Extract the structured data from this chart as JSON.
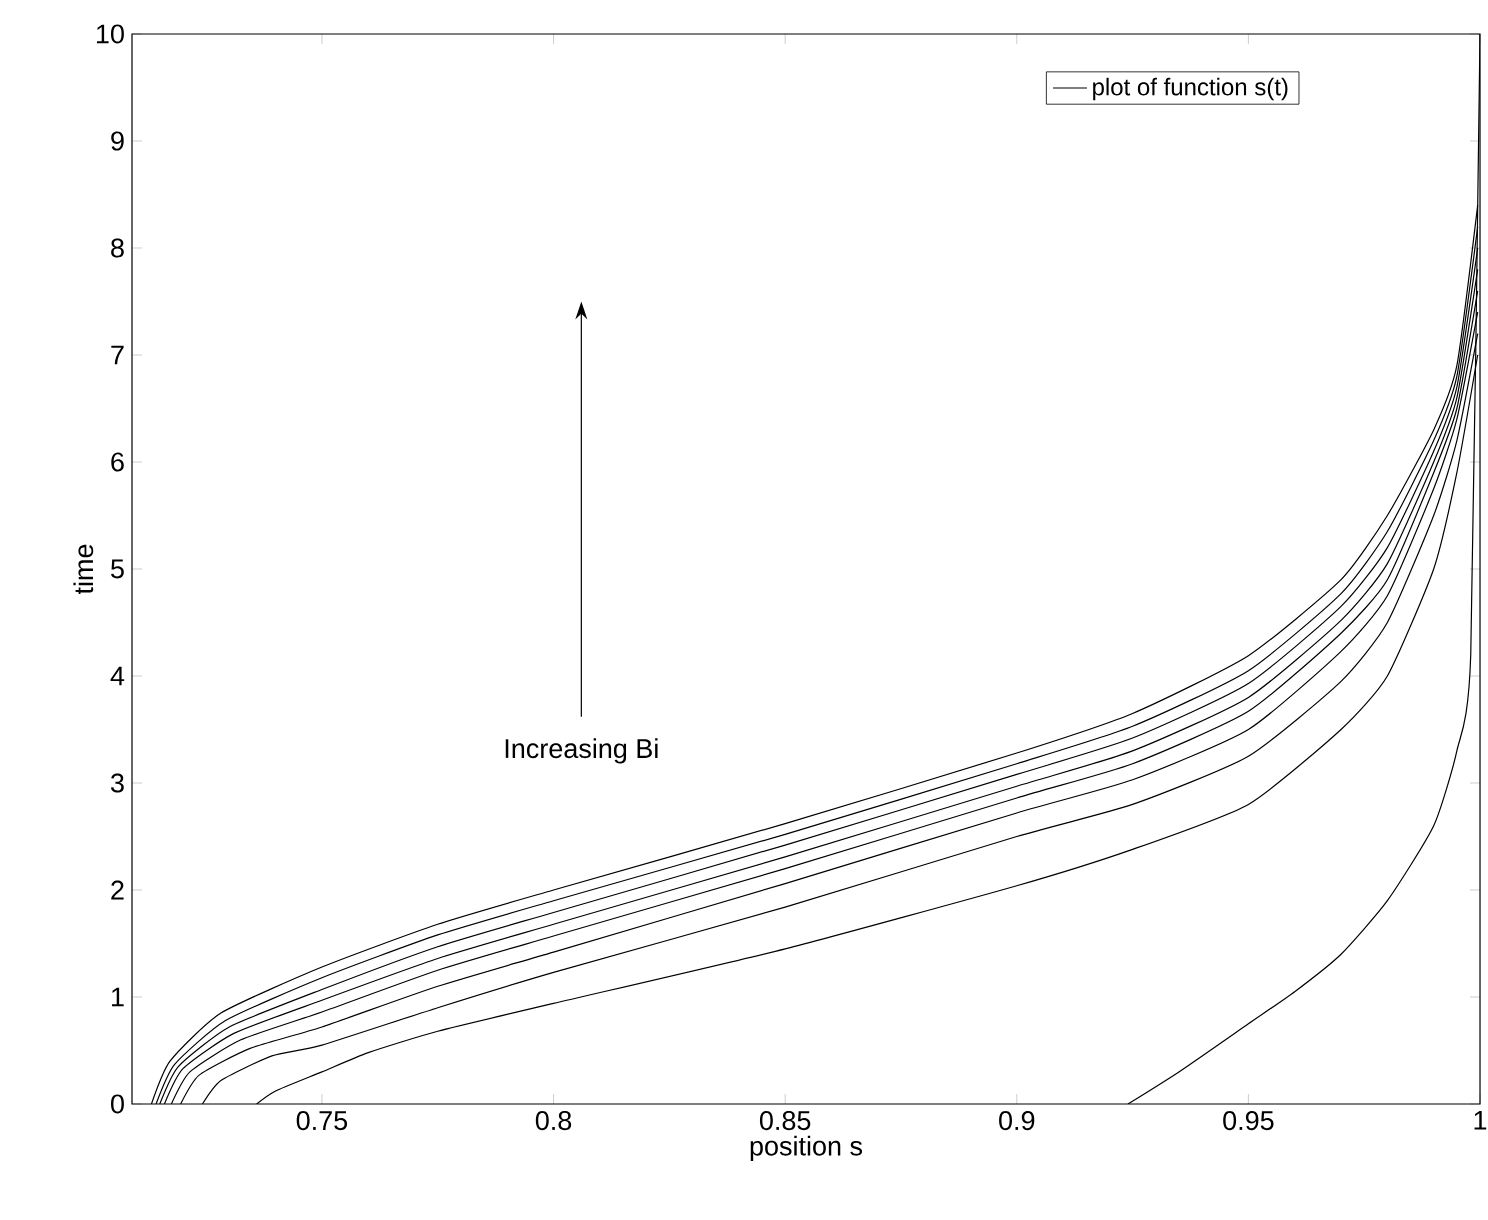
{
  "chart_data": {
    "type": "line",
    "xlabel": "position s",
    "ylabel": "time",
    "xlim": [
      0.709,
      1
    ],
    "ylim": [
      0,
      10
    ],
    "xticks": [
      0.75,
      0.8,
      0.85,
      0.9,
      0.95,
      1
    ],
    "yticks": [
      0,
      1,
      2,
      3,
      4,
      5,
      6,
      7,
      8,
      9,
      10
    ],
    "legend": "top right",
    "annotations": [
      "Increasing Bi"
    ],
    "series": [
      {
        "name": "plot of function s(t)",
        "color": "#000000",
        "x": [
          0.7132,
          0.7172,
          0.7282,
          0.75,
          0.775,
          0.8,
          0.85,
          0.9,
          0.925,
          0.95,
          0.97,
          0.98,
          0.99,
          0.995,
          0.9995
        ],
        "values": [
          0,
          0.4,
          0.85,
          1.28,
          1.68,
          2.0,
          2.62,
          3.28,
          3.65,
          4.19,
          4.9,
          5.5,
          6.3,
          6.9,
          8.4
        ]
      },
      {
        "color": "#000000",
        "x": [
          0.7142,
          0.7182,
          0.7292,
          0.75,
          0.775,
          0.8,
          0.85,
          0.9,
          0.925,
          0.95,
          0.97,
          0.98,
          0.99,
          0.995,
          0.9995
        ],
        "values": [
          0,
          0.37,
          0.78,
          1.18,
          1.58,
          1.9,
          2.52,
          3.18,
          3.53,
          4.05,
          4.77,
          5.35,
          6.2,
          6.8,
          8.2
        ]
      },
      {
        "color": "#000000",
        "x": [
          0.715,
          0.719,
          0.73,
          0.75,
          0.775,
          0.8,
          0.85,
          0.9,
          0.925,
          0.95,
          0.97,
          0.98,
          0.99,
          0.995,
          0.9995
        ],
        "values": [
          0,
          0.35,
          0.72,
          1.07,
          1.47,
          1.79,
          2.42,
          3.08,
          3.42,
          3.93,
          4.65,
          5.2,
          6.1,
          6.7,
          8.0
        ]
      },
      {
        "color": "#000000",
        "x": [
          0.716,
          0.72,
          0.731,
          0.75,
          0.775,
          0.8,
          0.85,
          0.9,
          0.925,
          0.95,
          0.97,
          0.98,
          0.99,
          0.995,
          0.9995
        ],
        "values": [
          0,
          0.33,
          0.66,
          0.97,
          1.36,
          1.68,
          2.31,
          2.97,
          3.3,
          3.8,
          4.52,
          5.05,
          6.0,
          6.6,
          7.8
        ]
      },
      {
        "color": "#000000",
        "x": [
          0.7175,
          0.7215,
          0.7325,
          0.75,
          0.775,
          0.8,
          0.85,
          0.9,
          0.925,
          0.95,
          0.97,
          0.98,
          0.99,
          0.995,
          0.9995
        ],
        "values": [
          0,
          0.3,
          0.6,
          0.86,
          1.25,
          1.57,
          2.2,
          2.86,
          3.18,
          3.67,
          4.4,
          4.9,
          5.9,
          6.5,
          7.6
        ]
      },
      {
        "color": "#000000",
        "x": [
          0.7195,
          0.7235,
          0.7345,
          0.75,
          0.775,
          0.8,
          0.85,
          0.9,
          0.925,
          0.95,
          0.97,
          0.98,
          0.99,
          0.995,
          0.9995
        ],
        "values": [
          0,
          0.27,
          0.52,
          0.72,
          1.1,
          1.42,
          2.06,
          2.72,
          3.03,
          3.5,
          4.23,
          4.75,
          5.75,
          6.4,
          7.4
        ]
      },
      {
        "color": "#000000",
        "x": [
          0.7242,
          0.7282,
          0.7392,
          0.75,
          0.775,
          0.8,
          0.85,
          0.9,
          0.925,
          0.95,
          0.97,
          0.98,
          0.99,
          0.995,
          0.9995
        ],
        "values": [
          0,
          0.22,
          0.45,
          0.55,
          0.9,
          1.23,
          1.84,
          2.5,
          2.8,
          3.25,
          3.95,
          4.5,
          5.5,
          6.2,
          7.2
        ]
      },
      {
        "color": "#000000",
        "x": [
          0.7359,
          0.7399,
          0.75,
          0.76,
          0.775,
          0.8,
          0.85,
          0.9,
          0.925,
          0.95,
          0.97,
          0.98,
          0.99,
          0.995,
          0.9995
        ],
        "values": [
          0,
          0.12,
          0.3,
          0.48,
          0.68,
          0.94,
          1.45,
          2.04,
          2.38,
          2.8,
          3.5,
          4.0,
          5.0,
          5.9,
          7.0
        ]
      },
      {
        "color": "#000000",
        "x": [
          0.924,
          0.935,
          0.95,
          0.96,
          0.97,
          0.98,
          0.99,
          0.995,
          0.998,
          1.0
        ],
        "values": [
          0,
          0.3,
          0.75,
          1.05,
          1.4,
          1.9,
          2.6,
          3.3,
          4.2,
          10
        ]
      }
    ]
  }
}
